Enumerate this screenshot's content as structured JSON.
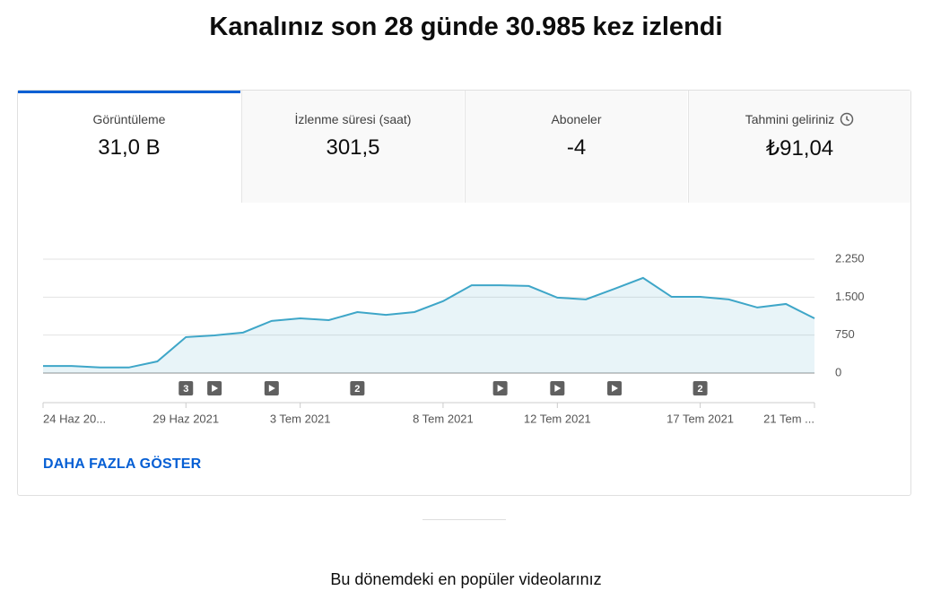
{
  "header": {
    "title": "Kanalınız son 28 günde 30.985 kez izlendi"
  },
  "tabs": [
    {
      "label": "Görüntüleme",
      "value": "31,0 B"
    },
    {
      "label": "İzlenme süresi (saat)",
      "value": "301,5"
    },
    {
      "label": "Aboneler",
      "value": "-4"
    },
    {
      "label": "Tahmini geliriniz",
      "value": "₺91,04"
    }
  ],
  "chart_data": {
    "type": "area",
    "categories": [
      "24 Haz 20...",
      null,
      null,
      null,
      null,
      "29 Haz 2021",
      null,
      null,
      null,
      "3 Tem 2021",
      null,
      null,
      null,
      null,
      "8 Tem 2021",
      null,
      null,
      null,
      "12 Tem 2021",
      null,
      null,
      null,
      null,
      "17 Tem 2021",
      null,
      null,
      null,
      "21 Tem ..."
    ],
    "values": [
      140,
      140,
      110,
      110,
      230,
      710,
      745,
      800,
      1030,
      1080,
      1045,
      1205,
      1150,
      1205,
      1420,
      1735,
      1735,
      1720,
      1490,
      1455,
      1665,
      1880,
      1505,
      1505,
      1455,
      1295,
      1365,
      1080
    ],
    "color": "#3ea6c8",
    "ylim": [
      0,
      2250
    ],
    "yticks": [
      0,
      750,
      {
        "value": 1500,
        "label": "1.500"
      },
      {
        "value": 2250,
        "label": "2.250"
      }
    ],
    "grid": true,
    "markers": [
      {
        "x": 5,
        "label": "3"
      },
      {
        "x": 6
      },
      {
        "x": 8
      },
      {
        "x": 11,
        "label": "2"
      },
      {
        "x": 16
      },
      {
        "x": 18
      },
      {
        "x": 20
      },
      {
        "x": 23,
        "label": "2"
      }
    ]
  },
  "show_more": "DAHA FAZLA GÖSTER",
  "section": {
    "title": "Bu dönemdeki en popüler videolarınız"
  }
}
